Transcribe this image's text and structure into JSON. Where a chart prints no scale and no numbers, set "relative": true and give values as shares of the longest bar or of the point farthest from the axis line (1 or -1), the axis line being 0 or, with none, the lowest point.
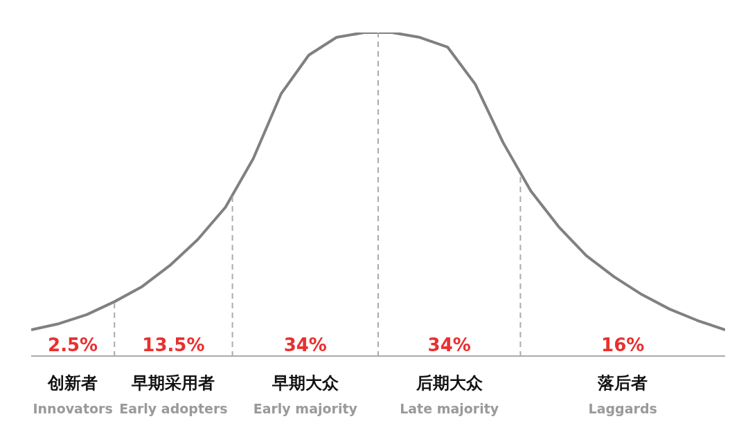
{
  "chart_data": {
    "type": "line",
    "relative": true,
    "categories": [
      null,
      null,
      null,
      null,
      null,
      null,
      null,
      null,
      null,
      null,
      null,
      null,
      null,
      null,
      null,
      null,
      null,
      null,
      null,
      null,
      null,
      null,
      null,
      null,
      null,
      null
    ],
    "values": [
      0.081,
      0.1,
      0.128,
      0.168,
      0.215,
      0.28,
      0.36,
      0.46,
      0.61,
      0.81,
      0.93,
      0.985,
      1,
      1,
      0.985,
      0.955,
      0.84,
      0.66,
      0.51,
      0.4,
      0.31,
      0.245,
      0.19,
      0.145,
      0.11,
      0.081
    ],
    "color": "#808080",
    "marker": "none",
    "line_style": "solid",
    "annotations": [
      "2.5%",
      "创新者",
      "Innovators",
      "13.5%",
      "早期采用者",
      "Early adopters",
      "34%",
      "早期大众",
      "Early majority",
      "34%",
      "后期大众",
      "Late majority",
      "16%",
      "落后者",
      "Laggards"
    ]
  }
}
